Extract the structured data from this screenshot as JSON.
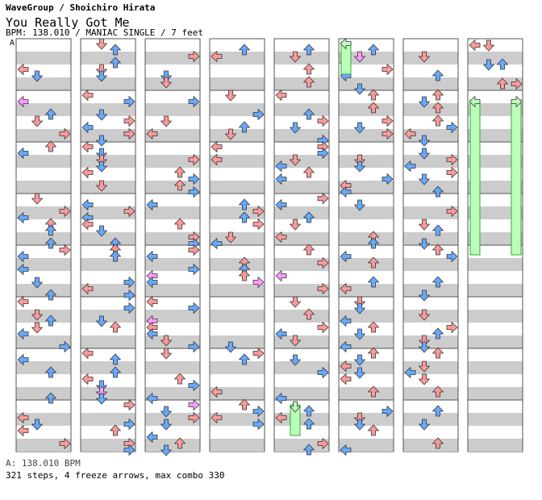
{
  "header": {
    "artist": "WaveGroup / Shoichiro Hirata",
    "title": "You Really Got Me",
    "meta": "BPM: 138.010 / MANIAC SINGLE / 7 feet",
    "bpm_tag": "A"
  },
  "footer": {
    "bpm_line": "A: 138.010 BPM",
    "stats": "321 steps, 4 freeze arrows, max combo 330"
  },
  "colors": {
    "stripe": "#cccccc",
    "border": "#555555",
    "quarter_note": "#ff9999",
    "eighth_note": "#66aaff",
    "sixteenth_note": "#ff99ff",
    "freeze_fill": "#bbffbb",
    "freeze_border": "#33aa33"
  },
  "chart_data": {
    "type": "step-chart",
    "columns": 8,
    "measures_per_column": 8,
    "total_measures": 58,
    "lane_order": [
      "left",
      "down",
      "up",
      "right"
    ],
    "arrow_legend": {
      "red": "quarter note",
      "blue": "eighth note",
      "pink": "sixteenth note",
      "green": "freeze arrow"
    },
    "freeze_arrows": [
      {
        "lane": "up",
        "start_measure": 49,
        "beats": 2
      },
      {
        "lane": "left",
        "start_measure": 57,
        "beats": 14
      },
      {
        "lane": "right",
        "start_measure": 57,
        "beats": 14
      },
      {
        "lane": "down",
        "start_measure": 47,
        "beats": 2.5
      }
    ],
    "steps": 321,
    "freeze_count": 4,
    "max_combo": 330
  }
}
